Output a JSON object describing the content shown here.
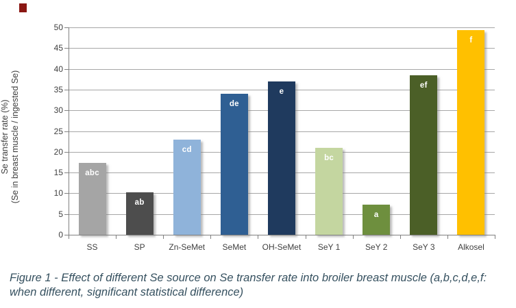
{
  "page": {
    "corner_mark_color": "#8a1713",
    "background": "#ffffff"
  },
  "chart_data": {
    "type": "bar",
    "title": "",
    "xlabel": "",
    "ylabel_line1": "Se transfer rate (%)",
    "ylabel_line2": "(Se in breast muscle / ingested Se)",
    "categories": [
      "SS",
      "SP",
      "Zn-SeMet",
      "SeMet",
      "OH-SeMet",
      "SeY 1",
      "SeY 2",
      "SeY 3",
      "Alkosel"
    ],
    "values": [
      17.3,
      10.3,
      23.0,
      34.0,
      37.0,
      21.0,
      7.3,
      38.5,
      49.3
    ],
    "significance_labels": [
      "abc",
      "ab",
      "cd",
      "de",
      "e",
      "bc",
      "a",
      "ef",
      "f"
    ],
    "bar_colors": [
      "#a5a5a5",
      "#4d4d4d",
      "#8fb3da",
      "#2f5f93",
      "#1f3a5e",
      "#c4d6a0",
      "#6e8f3e",
      "#4b5f27",
      "#ffc000"
    ],
    "ylim": [
      0,
      50
    ],
    "ytick_step": 5,
    "grid": true,
    "legend": false
  },
  "caption": {
    "line1": "Figure 1 -  Effect of different Se source on Se transfer rate into broiler breast muscle (a,b,c,d,e,f:",
    "line2": "when different, significant statistical difference)"
  }
}
